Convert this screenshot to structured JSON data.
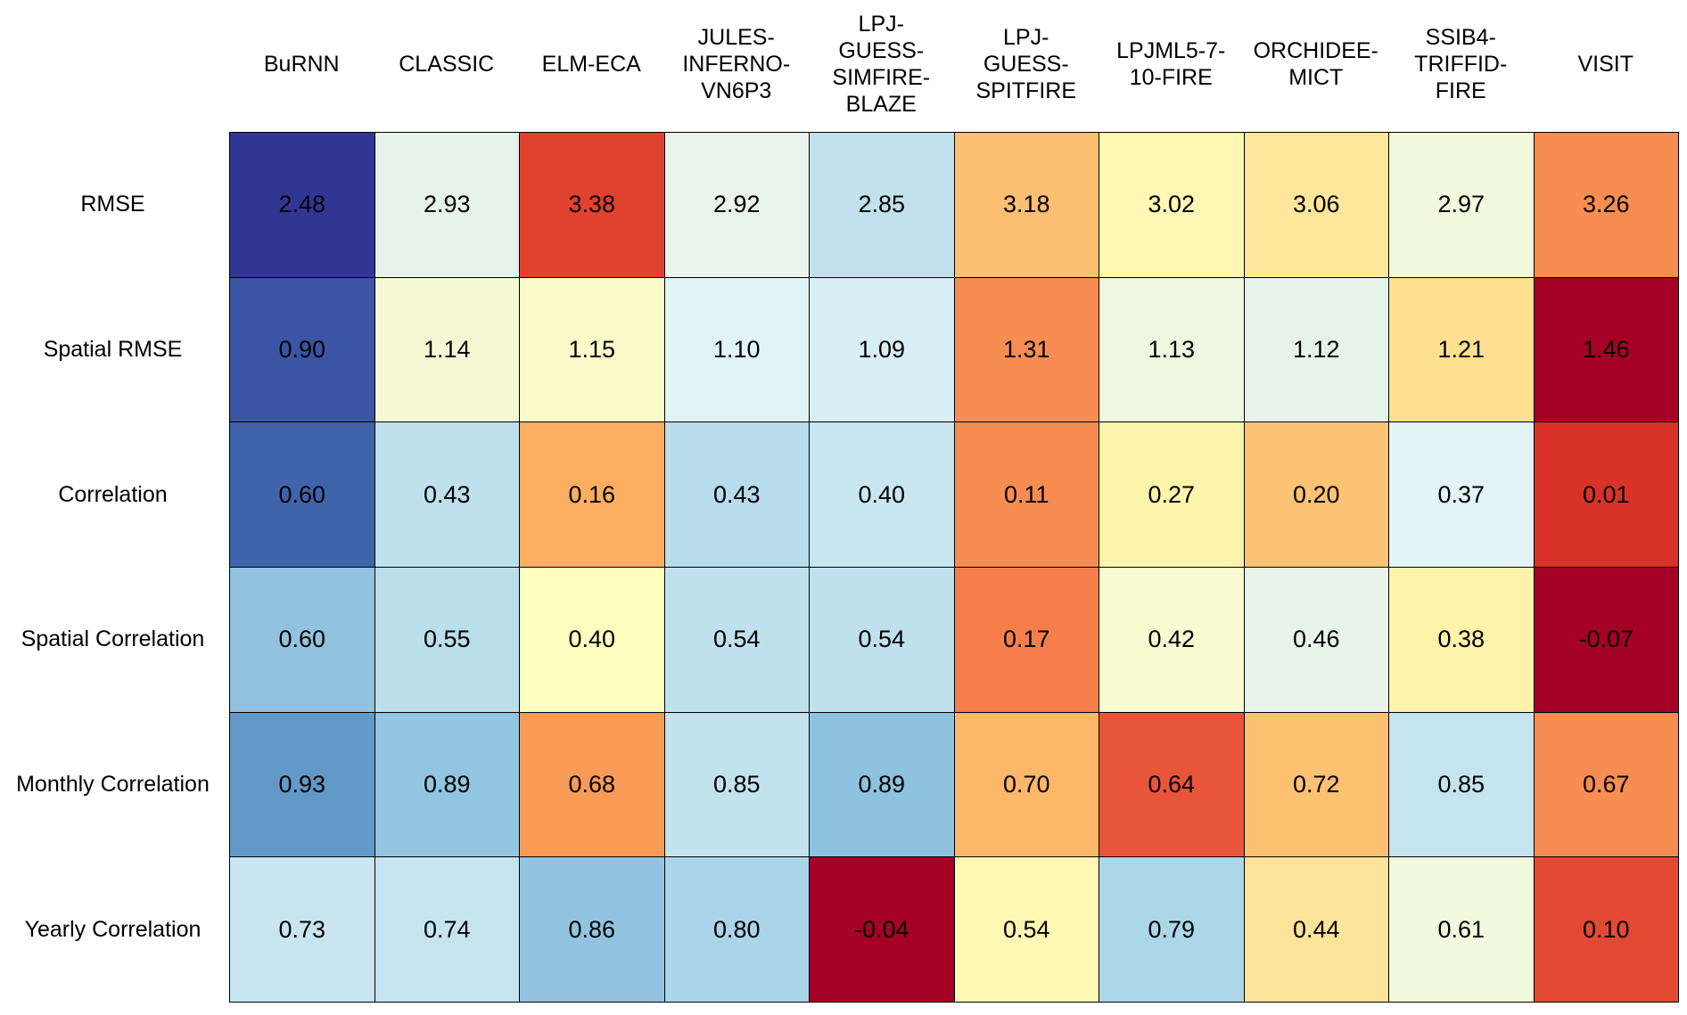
{
  "chart_data": {
    "type": "heatmap",
    "x_categories": [
      "BuRNN",
      "CLASSIC",
      "ELM-ECA",
      "JULES-\nINFERNO-\nVN6P3",
      "LPJ-\nGUESS-\nSIMFIRE-\nBLAZE",
      "LPJ-\nGUESS-\nSPITFIRE",
      "LPJML5-7-\n10-FIRE",
      "ORCHIDEE-\nMICT",
      "SSIB4-\nTRIFFID-\nFIRE",
      "VISIT"
    ],
    "y_categories": [
      "RMSE",
      "Spatial RMSE",
      "Correlation",
      "Spatial Correlation",
      "Monthly Correlation",
      "Yearly Correlation"
    ],
    "values": [
      [
        2.48,
        2.93,
        3.38,
        2.92,
        2.85,
        3.18,
        3.02,
        3.06,
        2.97,
        3.26
      ],
      [
        0.9,
        1.14,
        1.15,
        1.1,
        1.09,
        1.31,
        1.13,
        1.12,
        1.21,
        1.46
      ],
      [
        0.6,
        0.43,
        0.16,
        0.43,
        0.4,
        0.11,
        0.27,
        0.2,
        0.37,
        0.01
      ],
      [
        0.6,
        0.55,
        0.4,
        0.54,
        0.54,
        0.17,
        0.42,
        0.46,
        0.38,
        -0.07
      ],
      [
        0.93,
        0.89,
        0.68,
        0.85,
        0.89,
        0.7,
        0.64,
        0.72,
        0.85,
        0.67
      ],
      [
        0.73,
        0.74,
        0.86,
        0.8,
        -0.04,
        0.54,
        0.79,
        0.44,
        0.61,
        0.1
      ]
    ],
    "value_labels": [
      [
        "2.48",
        "2.93",
        "3.38",
        "2.92",
        "2.85",
        "3.18",
        "3.02",
        "3.06",
        "2.97",
        "3.26"
      ],
      [
        "0.90",
        "1.14",
        "1.15",
        "1.10",
        "1.09",
        "1.31",
        "1.13",
        "1.12",
        "1.21",
        "1.46"
      ],
      [
        "0.60",
        "0.43",
        "0.16",
        "0.43",
        "0.40",
        "0.11",
        "0.27",
        "0.20",
        "0.37",
        "0.01"
      ],
      [
        "0.60",
        "0.55",
        "0.40",
        "0.54",
        "0.54",
        "0.17",
        "0.42",
        "0.46",
        "0.38",
        "-0.07"
      ],
      [
        "0.93",
        "0.89",
        "0.68",
        "0.85",
        "0.89",
        "0.70",
        "0.64",
        "0.72",
        "0.85",
        "0.67"
      ],
      [
        "0.73",
        "0.74",
        "0.86",
        "0.80",
        "-0.04",
        "0.54",
        "0.79",
        "0.44",
        "0.61",
        "0.10"
      ]
    ],
    "colors": [
      [
        "#313695",
        "#e6f3ea",
        "#e0422f",
        "#e8f4ec",
        "#c2e1ec",
        "#fdbf71",
        "#fff7b3",
        "#fee79a",
        "#f3f9dc",
        "#f88d51"
      ],
      [
        "#3a55a3",
        "#f4f9d4",
        "#f9fbc8",
        "#e0f3f7",
        "#d6eef4",
        "#f88d51",
        "#eef7e0",
        "#e6f3ea",
        "#fee090",
        "#a50026"
      ],
      [
        "#4064ac",
        "#bfe1ee",
        "#fdae61",
        "#b7dded",
        "#c9e7f0",
        "#f88d51",
        "#fef5ad",
        "#fdc374",
        "#e4f4f6",
        "#d93228"
      ],
      [
        "#91c3df",
        "#b9deec",
        "#ffffbf",
        "#bfe1ee",
        "#bfe1ee",
        "#f67e4b",
        "#f8fbd0",
        "#e8f4ea",
        "#fff3a9",
        "#a50026"
      ],
      [
        "#6399c8",
        "#92c5e0",
        "#f99b57",
        "#c2e3ee",
        "#8ec2de",
        "#fdb768",
        "#e95539",
        "#fdc171",
        "#c4e4ef",
        "#f88d51"
      ],
      [
        "#c9e6f0",
        "#c5e4ef",
        "#92c4df",
        "#aad5e8",
        "#a50026",
        "#fff8b4",
        "#abd7e9",
        "#fee39a",
        "#f2f9dc",
        "#e34a33"
      ]
    ]
  }
}
